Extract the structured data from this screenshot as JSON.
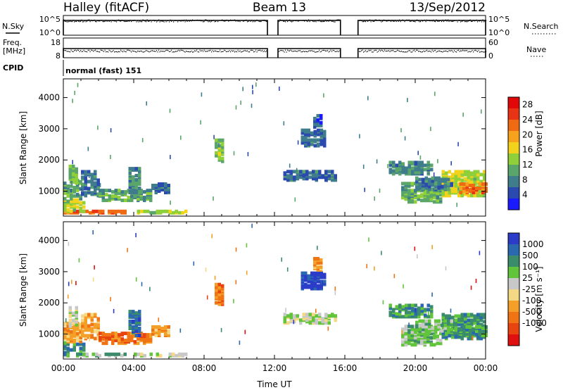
{
  "header": {
    "left": "Halley (fitACF)",
    "center": "Beam 13",
    "right": "13/Sep/2012"
  },
  "status_panels": {
    "nsky": {
      "label": "N.Sky",
      "ticks": [
        "10^5",
        "10^0"
      ]
    },
    "nsearch": {
      "label": "N.Search",
      "ticks": [
        "10^5",
        "10^0"
      ]
    },
    "freq": {
      "label_line1": "Freq.",
      "label_line2": "[MHz]",
      "ticks": [
        "18",
        "8"
      ]
    },
    "nave": {
      "label": "Nave",
      "ticks": [
        "60",
        "0"
      ]
    },
    "cpid": {
      "label": "CPID",
      "text": "normal (fast) 151"
    },
    "data_gaps_hours": [
      [
        11.6,
        12.2
      ],
      [
        15.75,
        16.75
      ]
    ]
  },
  "chart_data": [
    {
      "type": "heatmap",
      "name": "power",
      "ylabel": "Slant Range [km]",
      "xlabel": "",
      "xlim_hours": [
        0,
        24
      ],
      "ylim_km": [
        200,
        4600
      ],
      "yticks": [
        1000,
        2000,
        3000,
        4000
      ],
      "colorbar": {
        "label": "Power [dB]",
        "ticks": [
          4,
          8,
          12,
          16,
          20,
          24,
          28
        ],
        "range": [
          0,
          30
        ],
        "colors": [
          "#1a1aff",
          "#2a4ab0",
          "#3f7d8c",
          "#5aa66a",
          "#8fcf3a",
          "#f3d21c",
          "#f6a21c",
          "#f06a14",
          "#e83414",
          "#e00808"
        ]
      },
      "regions": [
        {
          "t0": 0.0,
          "t1": 3.5,
          "r0": 250,
          "r1": 320,
          "v": 22
        },
        {
          "t0": 0.0,
          "t1": 1.2,
          "r0": 300,
          "r1": 700,
          "v": 14
        },
        {
          "t0": 0.0,
          "t1": 1.0,
          "r0": 700,
          "r1": 1300,
          "v": 10
        },
        {
          "t0": 0.3,
          "t1": 0.8,
          "r0": 1200,
          "r1": 1800,
          "v": 12
        },
        {
          "t0": 1.0,
          "t1": 2.0,
          "r0": 800,
          "r1": 1600,
          "v": 7
        },
        {
          "t0": 2.0,
          "t1": 5.0,
          "r0": 650,
          "r1": 1000,
          "v": 10
        },
        {
          "t0": 3.7,
          "t1": 4.3,
          "r0": 900,
          "r1": 1700,
          "v": 8
        },
        {
          "t0": 5.0,
          "t1": 6.0,
          "r0": 900,
          "r1": 1200,
          "v": 6
        },
        {
          "t0": 4.0,
          "t1": 7.0,
          "r0": 250,
          "r1": 320,
          "v": 14
        },
        {
          "t0": 8.6,
          "t1": 9.0,
          "r0": 1900,
          "r1": 2600,
          "v": 12
        },
        {
          "t0": 13.5,
          "t1": 14.9,
          "r0": 2400,
          "r1": 2900,
          "v": 6
        },
        {
          "t0": 14.2,
          "t1": 14.6,
          "r0": 3000,
          "r1": 3400,
          "v": 5
        },
        {
          "t0": 12.5,
          "t1": 15.5,
          "r0": 1300,
          "r1": 1600,
          "v": 6
        },
        {
          "t0": 18.5,
          "t1": 21.0,
          "r0": 1500,
          "r1": 1900,
          "v": 8
        },
        {
          "t0": 19.2,
          "t1": 21.4,
          "r0": 600,
          "r1": 1200,
          "v": 10
        },
        {
          "t0": 21.5,
          "t1": 24.0,
          "r0": 800,
          "r1": 1600,
          "v": 14
        },
        {
          "t0": 22.5,
          "t1": 24.0,
          "r0": 900,
          "r1": 1200,
          "v": 22
        },
        {
          "t0": 20.0,
          "t1": 22.0,
          "r0": 1000,
          "r1": 1400,
          "v": 7
        }
      ]
    },
    {
      "type": "heatmap",
      "name": "velocity",
      "ylabel": "Slant Range [km]",
      "xlabel": "Time UT",
      "xlim_hours": [
        0,
        24
      ],
      "ylim_km": [
        200,
        4600
      ],
      "yticks": [
        1000,
        2000,
        3000,
        4000
      ],
      "xticks": [
        "00:00",
        "04:00",
        "08:00",
        "12:00",
        "16:00",
        "20:00",
        "00:00"
      ],
      "colorbar": {
        "label": "Velocity [m s⁻¹]",
        "ticks": [
          "1000",
          "500",
          "100",
          "25",
          "-25",
          "-100",
          "-500",
          "-1000"
        ],
        "colors": [
          "#2a3cc8",
          "#2a68b0",
          "#3a8c6a",
          "#62c43a",
          "#c8c8c8",
          "#f4d884",
          "#f4a028",
          "#f07414",
          "#e84410",
          "#e01010"
        ]
      },
      "regions": [
        {
          "t0": 0.0,
          "t1": 3.5,
          "r0": 250,
          "r1": 320,
          "v": 3
        },
        {
          "t0": 0.0,
          "t1": 1.2,
          "r0": 300,
          "r1": 700,
          "v": 2
        },
        {
          "t0": 0.0,
          "t1": 1.0,
          "r0": 700,
          "r1": 1300,
          "v": 6
        },
        {
          "t0": 0.3,
          "t1": 0.8,
          "r0": 1200,
          "r1": 1800,
          "v": 4
        },
        {
          "t0": 1.0,
          "t1": 2.0,
          "r0": 800,
          "r1": 1600,
          "v": 6
        },
        {
          "t0": 2.0,
          "t1": 5.0,
          "r0": 650,
          "r1": 1000,
          "v": 7
        },
        {
          "t0": 3.7,
          "t1": 4.3,
          "r0": 900,
          "r1": 1700,
          "v": 1
        },
        {
          "t0": 5.0,
          "t1": 6.0,
          "r0": 900,
          "r1": 1200,
          "v": 6
        },
        {
          "t0": 4.0,
          "t1": 7.0,
          "r0": 250,
          "r1": 320,
          "v": 4
        },
        {
          "t0": 8.6,
          "t1": 9.0,
          "r0": 1900,
          "r1": 2600,
          "v": 7
        },
        {
          "t0": 13.5,
          "t1": 14.9,
          "r0": 2400,
          "r1": 2900,
          "v": 0
        },
        {
          "t0": 14.2,
          "t1": 14.6,
          "r0": 3000,
          "r1": 3400,
          "v": 6
        },
        {
          "t0": 12.5,
          "t1": 15.5,
          "r0": 1300,
          "r1": 1600,
          "v": 4
        },
        {
          "t0": 18.5,
          "t1": 21.0,
          "r0": 1500,
          "r1": 1900,
          "v": 2
        },
        {
          "t0": 19.2,
          "t1": 21.4,
          "r0": 600,
          "r1": 1200,
          "v": 3
        },
        {
          "t0": 21.5,
          "t1": 24.0,
          "r0": 800,
          "r1": 1600,
          "v": 2
        },
        {
          "t0": 22.5,
          "t1": 24.0,
          "r0": 900,
          "r1": 1200,
          "v": 2
        },
        {
          "t0": 20.0,
          "t1": 22.0,
          "r0": 1000,
          "r1": 1400,
          "v": 3
        }
      ]
    }
  ]
}
